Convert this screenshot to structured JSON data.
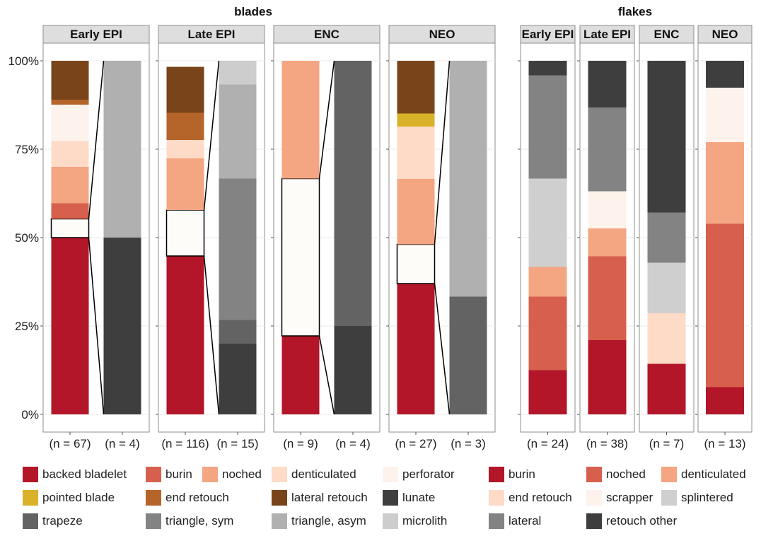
{
  "chart_data": {
    "type": "bar",
    "subtype": "stacked-100-percent",
    "y_ticks": [
      "0%",
      "25%",
      "50%",
      "75%",
      "100%"
    ],
    "ylim": [
      0,
      100
    ],
    "groups": [
      {
        "title": "blades",
        "panels": [
          {
            "title": "Early EPI",
            "connect": true,
            "bars": [
              {
                "label": "(n = 67)",
                "segments": [
                  {
                    "category": "backed bladelet",
                    "value": 50
                  },
                  {
                    "category": "inset",
                    "value": 5.3
                  },
                  {
                    "category": "burin",
                    "value": 4.4
                  },
                  {
                    "category": "noched",
                    "value": 10.3
                  },
                  {
                    "category": "denticulated",
                    "value": 7.3
                  },
                  {
                    "category": "perforator",
                    "value": 10.3
                  },
                  {
                    "category": "end retouch",
                    "value": 1.4
                  },
                  {
                    "category": "lateral retouch",
                    "value": 11
                  }
                ]
              },
              {
                "label": "(n = 4)",
                "segments": [
                  {
                    "category": "lunate",
                    "value": 50
                  },
                  {
                    "category": "triangle, asym",
                    "value": 50
                  }
                ]
              }
            ]
          },
          {
            "title": "Late EPI",
            "connect": true,
            "bars": [
              {
                "label": "(n = 116)",
                "segments": [
                  {
                    "category": "backed bladelet",
                    "value": 44.8
                  },
                  {
                    "category": "inset",
                    "value": 13
                  },
                  {
                    "category": "noched",
                    "value": 14.6
                  },
                  {
                    "category": "denticulated",
                    "value": 5.2
                  },
                  {
                    "category": "end retouch",
                    "value": 7.7
                  },
                  {
                    "category": "lateral retouch",
                    "value": 13
                  }
                ]
              },
              {
                "label": "(n = 15)",
                "segments": [
                  {
                    "category": "lunate",
                    "value": 20
                  },
                  {
                    "category": "trapeze",
                    "value": 6.7
                  },
                  {
                    "category": "triangle, sym",
                    "value": 40
                  },
                  {
                    "category": "triangle, asym",
                    "value": 26.6
                  },
                  {
                    "category": "microlith",
                    "value": 6.7
                  }
                ]
              }
            ]
          },
          {
            "title": "ENC",
            "connect": true,
            "bars": [
              {
                "label": "(n = 9)",
                "segments": [
                  {
                    "category": "backed bladelet",
                    "value": 22.2
                  },
                  {
                    "category": "inset",
                    "value": 44.5
                  },
                  {
                    "category": "noched",
                    "value": 33.3
                  }
                ]
              },
              {
                "label": "(n = 4)",
                "segments": [
                  {
                    "category": "lunate",
                    "value": 25
                  },
                  {
                    "category": "trapeze",
                    "value": 75
                  }
                ]
              }
            ]
          },
          {
            "title": "NEO",
            "connect": true,
            "bars": [
              {
                "label": "(n = 27)",
                "segments": [
                  {
                    "category": "backed bladelet",
                    "value": 37
                  },
                  {
                    "category": "inset",
                    "value": 11.1
                  },
                  {
                    "category": "noched",
                    "value": 18.5
                  },
                  {
                    "category": "denticulated",
                    "value": 14.8
                  },
                  {
                    "category": "pointed blade",
                    "value": 3.7
                  },
                  {
                    "category": "lateral retouch",
                    "value": 14.9
                  }
                ]
              },
              {
                "label": "(n = 3)",
                "segments": [
                  {
                    "category": "trapeze",
                    "value": 33.3
                  },
                  {
                    "category": "triangle, asym",
                    "value": 66.7
                  }
                ]
              }
            ]
          }
        ]
      },
      {
        "title": "flakes",
        "panels": [
          {
            "title": "Early EPI",
            "connect": false,
            "bars": [
              {
                "label": "(n = 24)",
                "segments": [
                  {
                    "category": "flake burin",
                    "value": 12.5
                  },
                  {
                    "category": "flake noched",
                    "value": 20.8
                  },
                  {
                    "category": "flake denticulated",
                    "value": 8.4
                  },
                  {
                    "category": "splintered",
                    "value": 25
                  },
                  {
                    "category": "lateral",
                    "value": 29.2
                  },
                  {
                    "category": "retouch other",
                    "value": 4.1
                  }
                ]
              }
            ]
          },
          {
            "title": "Late EPI",
            "connect": false,
            "bars": [
              {
                "label": "(n = 38)",
                "segments": [
                  {
                    "category": "flake burin",
                    "value": 21
                  },
                  {
                    "category": "flake noched",
                    "value": 23.7
                  },
                  {
                    "category": "flake denticulated",
                    "value": 7.9
                  },
                  {
                    "category": "scrapper",
                    "value": 10.5
                  },
                  {
                    "category": "lateral",
                    "value": 23.7
                  },
                  {
                    "category": "retouch other",
                    "value": 13.2
                  }
                ]
              }
            ]
          },
          {
            "title": "ENC",
            "connect": false,
            "bars": [
              {
                "label": "(n = 7)",
                "segments": [
                  {
                    "category": "flake burin",
                    "value": 14.3
                  },
                  {
                    "category": "flake end retouch",
                    "value": 14.3
                  },
                  {
                    "category": "splintered",
                    "value": 14.3
                  },
                  {
                    "category": "lateral",
                    "value": 14.2
                  },
                  {
                    "category": "retouch other",
                    "value": 42.9
                  }
                ]
              }
            ]
          },
          {
            "title": "NEO",
            "connect": false,
            "bars": [
              {
                "label": "(n = 13)",
                "segments": [
                  {
                    "category": "flake burin",
                    "value": 7.7
                  },
                  {
                    "category": "flake noched",
                    "value": 46.2
                  },
                  {
                    "category": "flake denticulated",
                    "value": 23.1
                  },
                  {
                    "category": "scrapper",
                    "value": 15.4
                  },
                  {
                    "category": "retouch other",
                    "value": 7.6
                  }
                ]
              }
            ]
          }
        ]
      }
    ],
    "colors": {
      "backed bladelet": "#b21628",
      "burin": "#d6604d",
      "noched": "#f4a582",
      "denticulated": "#fddbc7",
      "perforator": "#fdf3ec",
      "pointed blade": "#d9b22a",
      "end retouch": "#b5642a",
      "lateral retouch": "#7a441a",
      "lunate": "#3e3e3e",
      "trapeze": "#636363",
      "triangle, sym": "#838383",
      "triangle, asym": "#b0b0b0",
      "microlith": "#cdcdcd",
      "inset": "#fdfcf8",
      "flake burin": "#b21628",
      "flake noched": "#d6604d",
      "flake denticulated": "#f4a582",
      "flake end retouch": "#fddbc7",
      "scrapper": "#fdf3ec",
      "splintered": "#cfcfcf",
      "lateral": "#838383",
      "retouch other": "#3e3e3e"
    },
    "legend": [
      {
        "label": "backed bladelet",
        "color_key": "backed bladelet"
      },
      {
        "label": "burin",
        "color_key": "burin"
      },
      {
        "label": "noched",
        "color_key": "noched"
      },
      {
        "label": "denticulated",
        "color_key": "denticulated"
      },
      {
        "label": "perforator",
        "color_key": "perforator"
      },
      {
        "label": "burin",
        "color_key": "flake burin"
      },
      {
        "label": "noched",
        "color_key": "flake noched"
      },
      {
        "label": "denticulated",
        "color_key": "flake denticulated"
      },
      {
        "label": "pointed blade",
        "color_key": "pointed blade"
      },
      {
        "label": "end retouch",
        "color_key": "end retouch"
      },
      {
        "label": "lateral retouch",
        "color_key": "lateral retouch"
      },
      {
        "label": "lunate",
        "color_key": "lunate"
      },
      {
        "label": "end retouch",
        "color_key": "flake end retouch"
      },
      {
        "label": "scrapper",
        "color_key": "scrapper"
      },
      {
        "label": "splintered",
        "color_key": "splintered"
      },
      {
        "label": "trapeze",
        "color_key": "trapeze"
      },
      {
        "label": "triangle, sym",
        "color_key": "triangle, sym"
      },
      {
        "label": "triangle, asym",
        "color_key": "triangle, asym"
      },
      {
        "label": "microlith",
        "color_key": "microlith"
      },
      {
        "label": "lateral",
        "color_key": "lateral"
      },
      {
        "label": "retouch other",
        "color_key": "retouch other"
      }
    ]
  }
}
